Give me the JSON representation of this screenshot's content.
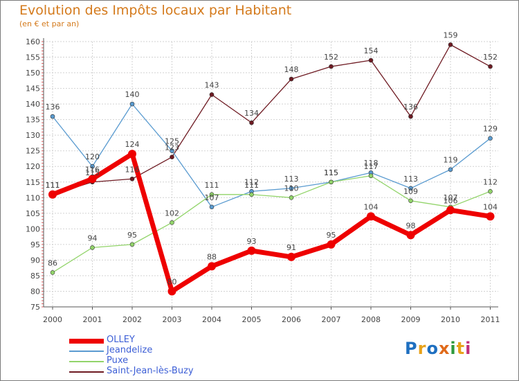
{
  "title": "Evolution des Impôts locaux par Habitant",
  "subtitle": "(en € et par an)",
  "logo_letters": [
    {
      "ch": "P",
      "color": "#1e6fc0"
    },
    {
      "ch": "r",
      "color": "#e8a21a"
    },
    {
      "ch": "o",
      "color": "#1e6fc0"
    },
    {
      "ch": "x",
      "color": "#e06a1a"
    },
    {
      "ch": "i",
      "color": "#2e9a3c"
    },
    {
      "ch": "t",
      "color": "#e8a21a"
    },
    {
      "ch": "i",
      "color": "#c2307a"
    }
  ],
  "chart_data": {
    "type": "line",
    "title": "Evolution des Impôts locaux par Habitant",
    "subtitle": "(en € et par an)",
    "xlabel": "",
    "ylabel": "",
    "ylim": [
      75,
      160
    ],
    "yticks": [
      75,
      80,
      85,
      90,
      95,
      100,
      105,
      110,
      115,
      120,
      125,
      130,
      135,
      140,
      145,
      150,
      155,
      160
    ],
    "categories": [
      "2000",
      "2001",
      "2002",
      "2003",
      "2004",
      "2005",
      "2006",
      "2007",
      "2008",
      "2009",
      "2010",
      "2011"
    ],
    "grid": true,
    "legend_position": "bottom-left",
    "series": [
      {
        "name": "Saint-Jean-lès-Buzy",
        "color": "#6e1a22",
        "values": [
          111,
          115,
          116,
          123,
          143,
          134,
          148,
          152,
          154,
          136,
          159,
          152
        ]
      },
      {
        "name": "Jeandelize",
        "color": "#5a9bd0",
        "values": [
          136,
          120,
          140,
          125,
          107,
          112,
          113,
          115,
          118,
          113,
          119,
          129
        ]
      },
      {
        "name": "Puxe",
        "color": "#92d46a",
        "values": [
          86,
          94,
          95,
          102,
          111,
          111,
          110,
          115,
          117,
          109,
          107,
          112
        ]
      },
      {
        "name": "OLLEY",
        "color": "#ee0000",
        "values": [
          111,
          116,
          124,
          80,
          88,
          93,
          91,
          95,
          104,
          98,
          106,
          104
        ]
      }
    ],
    "legend_order": [
      "OLLEY",
      "Jeandelize",
      "Puxe",
      "Saint-Jean-lès-Buzy"
    ]
  }
}
